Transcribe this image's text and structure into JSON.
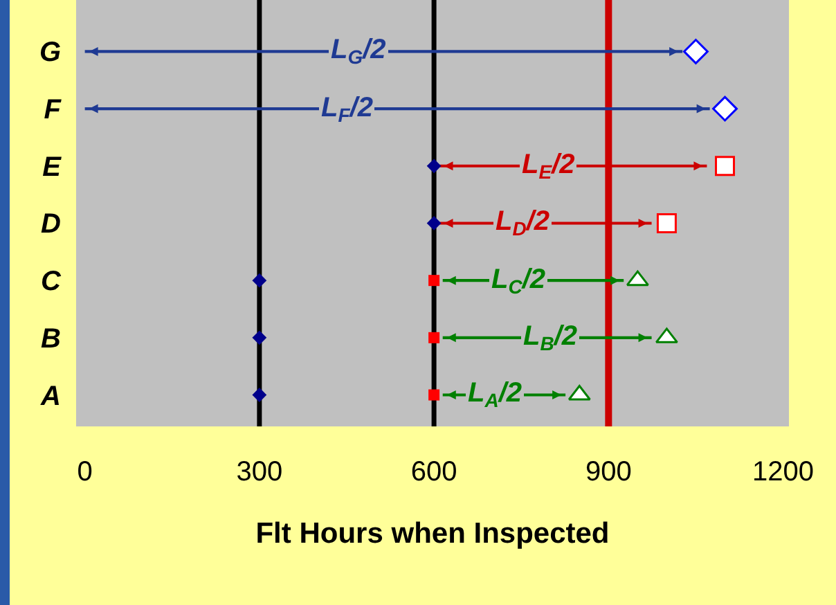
{
  "chart_data": {
    "type": "scatter",
    "orientation": "horizontal",
    "xlabel": "Flt Hours when Inspected",
    "categories": [
      "G",
      "F",
      "E",
      "D",
      "C",
      "B",
      "A"
    ],
    "xlim": [
      -15,
      1210
    ],
    "xticks": [
      0,
      300,
      600,
      900,
      1200
    ],
    "grid": false,
    "series": [
      {
        "type": "bar",
        "colors": [
          "#1f3a93",
          "#1f3a93",
          "#cc0000",
          "#cc0000",
          "#008000",
          "#008000",
          "#008000"
        ],
        "base": [
          0,
          0,
          610,
          610,
          615,
          615,
          615
        ],
        "values": [
          1027,
          1074,
          459,
          364,
          311,
          359,
          211
        ]
      },
      {
        "marker": "diamond",
        "color": "#00008b",
        "values": [
          null,
          null,
          null,
          null,
          300,
          300,
          300
        ]
      },
      {
        "marker": "diamond",
        "color": "#00008b",
        "values": [
          null,
          null,
          600,
          600,
          null,
          null,
          null
        ]
      },
      {
        "marker": "square",
        "color": "#ff0000",
        "values": [
          null,
          null,
          null,
          null,
          600,
          600,
          600
        ]
      },
      {
        "marker": "diamond",
        "color": "#0000ff",
        "values": [
          1050,
          1100,
          null,
          null,
          null,
          null,
          null
        ]
      },
      {
        "marker": "square",
        "color": "#ff0000",
        "values": [
          null,
          null,
          1100,
          1000,
          null,
          null,
          null
        ]
      },
      {
        "marker": "triangle",
        "color": "#008000",
        "values": [
          null,
          null,
          null,
          null,
          950,
          1000,
          850
        ]
      }
    ],
    "ref_lines": [
      {
        "axis": "x",
        "value": 300,
        "color": "#000000"
      },
      {
        "axis": "x",
        "value": 600,
        "color": "#000000"
      },
      {
        "axis": "x",
        "value": 900,
        "color": "#cc0000"
      }
    ],
    "annotations": [
      {
        "text": "L$_{G}$/2",
        "x": 470,
        "y": "G"
      },
      {
        "text": "L$_{F}$/2",
        "x": 450,
        "y": "F"
      },
      {
        "text": "L$_{E}$/2",
        "x": 795,
        "y": "E"
      },
      {
        "text": "L$_{D}$/2",
        "x": 752,
        "y": "D"
      },
      {
        "text": "L$_{C}$/2",
        "x": 745,
        "y": "C"
      },
      {
        "text": "L$_{B}$/2",
        "x": 800,
        "y": "B"
      },
      {
        "text": "L$_{A}$/2",
        "x": 705,
        "y": "A"
      }
    ]
  }
}
